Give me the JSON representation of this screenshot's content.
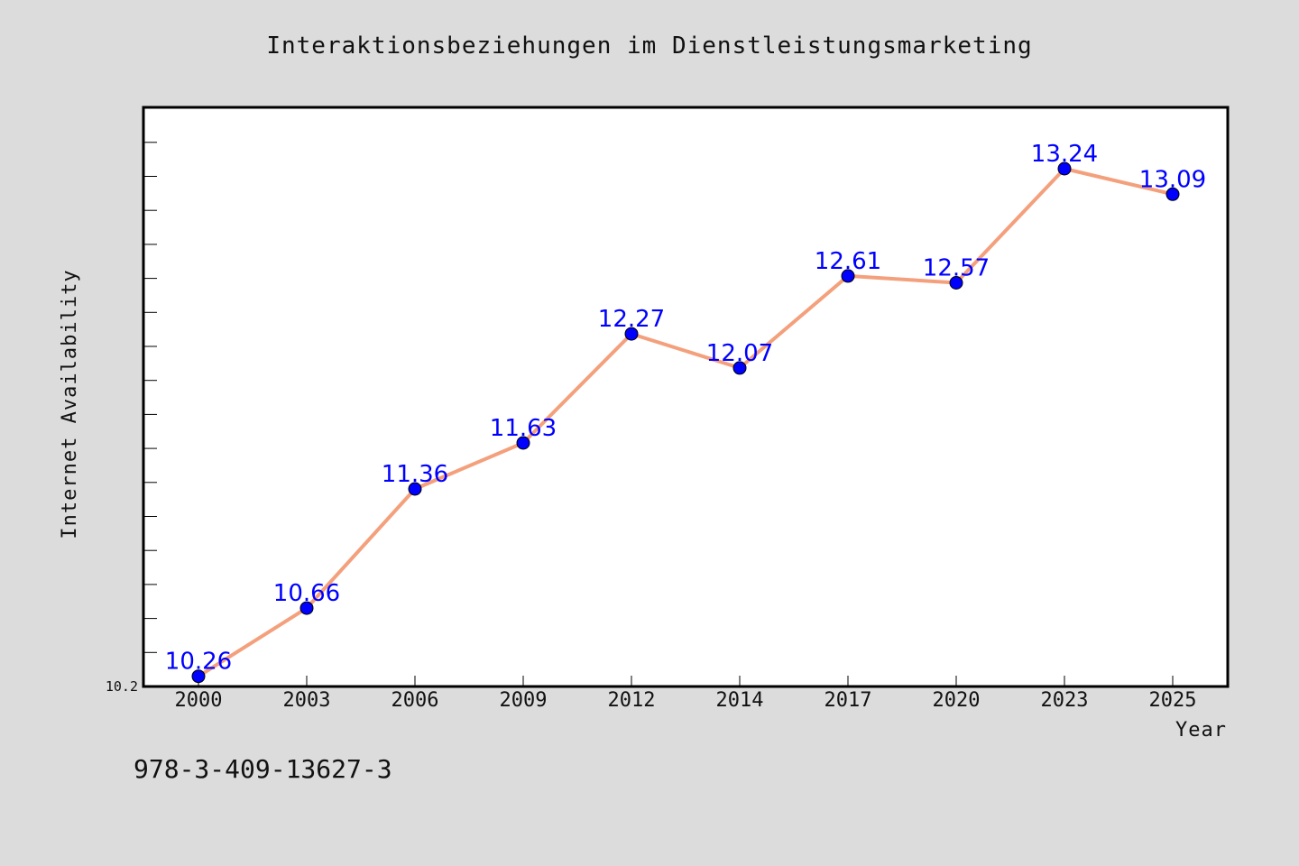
{
  "chart_data": {
    "type": "line",
    "title": "Interaktionsbeziehungen im Dienstleistungsmarketing",
    "xlabel": "Year",
    "ylabel": "Internet Availability",
    "categories": [
      "2000",
      "2003",
      "2006",
      "2009",
      "2012",
      "2014",
      "2017",
      "2020",
      "2023",
      "2025"
    ],
    "series": [
      {
        "values": [
          10.26,
          10.66,
          11.36,
          11.63,
          12.27,
          12.07,
          12.61,
          12.57,
          13.24,
          13.09
        ],
        "labels": [
          "10.26",
          "10.66",
          "11.36",
          "11.63",
          "12.27",
          "12.07",
          "12.61",
          "12.57",
          "13.24",
          "13.09"
        ],
        "line_color": "#f4a07c",
        "marker_color": "#0000ff"
      }
    ],
    "ylim": [
      10.2,
      13.6
    ],
    "y_tick_labels": [
      "10.2"
    ],
    "grid": false,
    "legend": "none"
  },
  "footer": {
    "isbn": "978-3-409-13627-3"
  },
  "colors": {
    "background": "#dcdcdc",
    "plot_background": "#ffffff",
    "line": "#f4a07c",
    "marker": "#0000ff",
    "data_label": "#0000ff"
  }
}
